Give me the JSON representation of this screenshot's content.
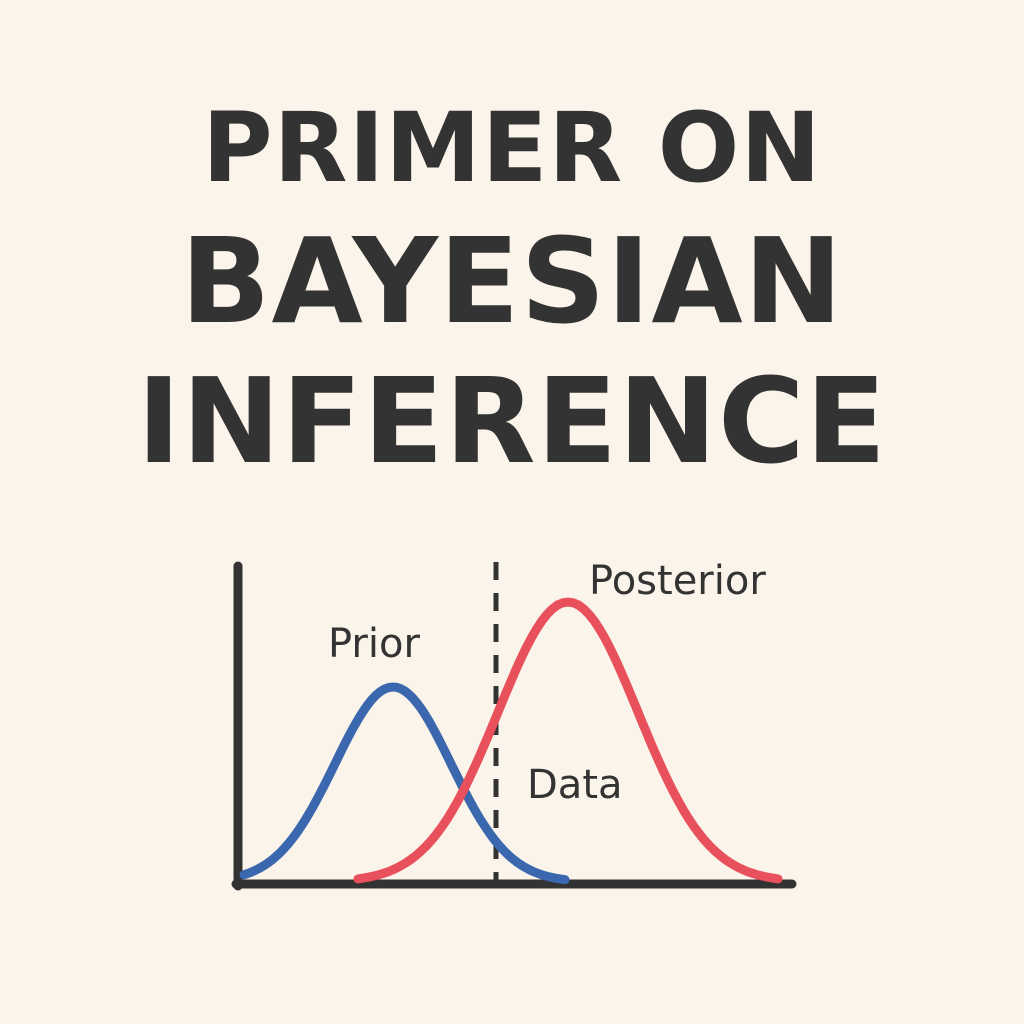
{
  "colors": {
    "background": "#fbf4ea",
    "ink": "#333333",
    "prior": "#3a67ad",
    "posterior": "#e8505b",
    "data_line": "#333333"
  },
  "title": {
    "line1": "PRIMER ON",
    "line2": "BAYESIAN",
    "line3": "INFERENCE"
  },
  "diagram": {
    "prior_label": "Prior",
    "posterior_label": "Posterior",
    "data_label": "Data"
  }
}
